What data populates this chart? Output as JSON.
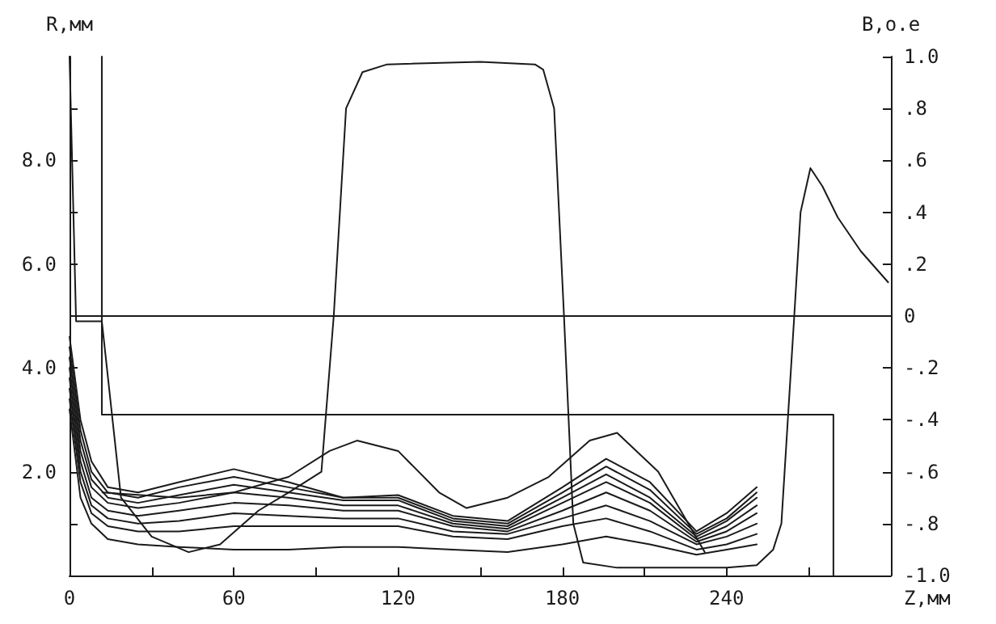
{
  "chart_data": {
    "type": "line",
    "xlabel": "Z,мм",
    "ylabel": "R,мм",
    "y2label": "B,o.e",
    "xlim": [
      0,
      300
    ],
    "xticks": [
      0,
      {
        "value": 30,
        "label": null
      },
      60,
      {
        "value": 90,
        "label": null
      },
      120,
      {
        "value": 150,
        "label": null
      },
      180,
      {
        "value": 210,
        "label": null
      },
      240,
      {
        "value": 270,
        "label": null
      },
      {
        "value": 300,
        "label": null
      }
    ],
    "ylim": [
      0,
      10
    ],
    "yticks": [
      {
        "value": 0,
        "label": null
      },
      {
        "value": 1,
        "label": null
      },
      {
        "value": 2,
        "label": "2.0"
      },
      {
        "value": 3,
        "label": null
      },
      {
        "value": 4,
        "label": "4.0"
      },
      {
        "value": 5,
        "label": null
      },
      {
        "value": 6,
        "label": "6.0"
      },
      {
        "value": 7,
        "label": null
      },
      {
        "value": 8,
        "label": "8.0"
      },
      {
        "value": 9,
        "label": null
      }
    ],
    "y2lim": [
      -1,
      1
    ],
    "y2ticks": [
      {
        "value": -1,
        "label": "-1.0"
      },
      {
        "value": -0.8,
        "label": "-.8"
      },
      {
        "value": -0.6,
        "label": "-.6"
      },
      {
        "value": -0.4,
        "label": "-.4"
      },
      {
        "value": -0.2,
        "label": "-.2"
      },
      0,
      {
        "value": 0.2,
        "label": ".2"
      },
      {
        "value": 0.4,
        "label": ".4"
      },
      {
        "value": 0.6,
        "label": ".6"
      },
      {
        "value": 0.8,
        "label": ".8"
      },
      {
        "value": 1,
        "label": "1.0"
      }
    ],
    "grid": false,
    "marker": "none",
    "line_style": "solid",
    "ref_lines": [
      {
        "axis": "y2",
        "value": 0,
        "color": "#1a1a1a"
      }
    ],
    "series": [
      {
        "color": "#1a1a1a",
        "axis": "y2",
        "x": [
          0,
          2.4,
          11.8,
          18.8,
          30,
          43.5,
          55,
          69,
          80,
          92,
          96.5,
          101,
          107,
          116,
          150,
          170,
          173,
          177,
          180.6,
          184,
          187.6,
          200,
          240,
          251,
          257,
          260,
          264.7,
          267,
          270.6,
          275,
          280.6,
          289,
          299
        ],
        "values": [
          1.0,
          -0.02,
          -0.02,
          -0.7,
          -0.85,
          -0.91,
          -0.88,
          -0.75,
          -0.68,
          -0.6,
          0.0,
          0.8,
          0.94,
          0.97,
          0.98,
          0.97,
          0.95,
          0.8,
          0.0,
          -0.8,
          -0.95,
          -0.97,
          -0.97,
          -0.96,
          -0.9,
          -0.8,
          0.0,
          0.4,
          0.57,
          0.5,
          0.38,
          0.25,
          0.13
        ]
      },
      {
        "color": "#1a1a1a",
        "x": [
          11.8,
          11.8,
          279,
          279
        ],
        "values": [
          10,
          3.1,
          3.1,
          0
        ]
      },
      {
        "color": "#1a1a1a",
        "x": [
          12,
          40,
          60,
          80,
          95,
          105,
          120,
          135,
          145,
          160,
          175,
          190,
          200,
          215,
          232
        ],
        "values": [
          1.6,
          1.5,
          1.6,
          1.9,
          2.4,
          2.6,
          2.4,
          1.6,
          1.3,
          1.5,
          1.9,
          2.6,
          2.75,
          2.0,
          0.45
        ]
      },
      {
        "color": "#1a1a1a",
        "x": [
          0,
          4,
          8,
          14,
          25,
          40,
          60,
          80,
          100,
          120,
          140,
          160,
          180,
          196,
          212,
          229,
          240,
          251
        ],
        "values": [
          4.6,
          3.0,
          2.2,
          1.7,
          1.6,
          1.8,
          2.05,
          1.8,
          1.5,
          1.55,
          1.15,
          1.05,
          1.7,
          2.25,
          1.8,
          0.85,
          1.2,
          1.7
        ]
      },
      {
        "color": "#1a1a1a",
        "x": [
          0,
          4,
          8,
          14,
          25,
          40,
          60,
          80,
          100,
          120,
          140,
          160,
          180,
          196,
          212,
          229,
          240,
          251
        ],
        "values": [
          4.4,
          2.8,
          2.0,
          1.6,
          1.5,
          1.7,
          1.9,
          1.7,
          1.5,
          1.5,
          1.1,
          1.0,
          1.6,
          2.1,
          1.65,
          0.8,
          1.1,
          1.6
        ]
      },
      {
        "color": "#1a1a1a",
        "x": [
          0,
          4,
          8,
          14,
          25,
          40,
          60,
          80,
          100,
          120,
          140,
          160,
          180,
          196,
          212,
          229,
          240,
          251
        ],
        "values": [
          4.2,
          2.6,
          1.85,
          1.5,
          1.4,
          1.55,
          1.75,
          1.6,
          1.45,
          1.45,
          1.05,
          0.95,
          1.5,
          1.95,
          1.5,
          0.75,
          1.05,
          1.5
        ]
      },
      {
        "color": "#1a1a1a",
        "x": [
          0,
          4,
          8,
          14,
          25,
          40,
          60,
          80,
          100,
          120,
          140,
          160,
          180,
          196,
          212,
          229,
          240,
          251
        ],
        "values": [
          4.0,
          2.4,
          1.7,
          1.4,
          1.3,
          1.4,
          1.6,
          1.5,
          1.35,
          1.35,
          1.0,
          0.9,
          1.4,
          1.8,
          1.4,
          0.7,
          0.95,
          1.35
        ]
      },
      {
        "color": "#1a1a1a",
        "x": [
          0,
          4,
          8,
          14,
          25,
          40,
          60,
          80,
          100,
          120,
          140,
          160,
          180,
          196,
          212,
          229,
          240,
          251
        ],
        "values": [
          3.8,
          2.2,
          1.5,
          1.25,
          1.15,
          1.25,
          1.4,
          1.35,
          1.25,
          1.25,
          0.95,
          0.85,
          1.25,
          1.6,
          1.25,
          0.65,
          0.85,
          1.2
        ]
      },
      {
        "color": "#1a1a1a",
        "x": [
          0,
          4,
          8,
          14,
          25,
          40,
          60,
          80,
          100,
          120,
          140,
          160,
          180,
          196,
          212,
          229,
          240,
          251
        ],
        "values": [
          3.6,
          2.0,
          1.35,
          1.1,
          1.0,
          1.05,
          1.2,
          1.15,
          1.1,
          1.1,
          0.85,
          0.8,
          1.1,
          1.35,
          1.05,
          0.6,
          0.75,
          1.0
        ]
      },
      {
        "color": "#1a1a1a",
        "x": [
          0,
          4,
          8,
          14,
          25,
          40,
          60,
          80,
          100,
          120,
          140,
          160,
          180,
          196,
          212,
          229,
          240,
          251
        ],
        "values": [
          3.4,
          1.8,
          1.2,
          0.95,
          0.85,
          0.85,
          0.95,
          0.95,
          0.95,
          0.95,
          0.75,
          0.7,
          0.95,
          1.1,
          0.85,
          0.5,
          0.6,
          0.8
        ]
      },
      {
        "color": "#1a1a1a",
        "x": [
          0,
          4,
          8,
          14,
          25,
          40,
          60,
          80,
          100,
          120,
          140,
          160,
          180,
          196,
          212,
          229,
          240,
          251
        ],
        "values": [
          3.2,
          1.5,
          1.0,
          0.7,
          0.6,
          0.55,
          0.5,
          0.5,
          0.55,
          0.55,
          0.5,
          0.45,
          0.6,
          0.75,
          0.6,
          0.4,
          0.5,
          0.6
        ]
      }
    ]
  }
}
